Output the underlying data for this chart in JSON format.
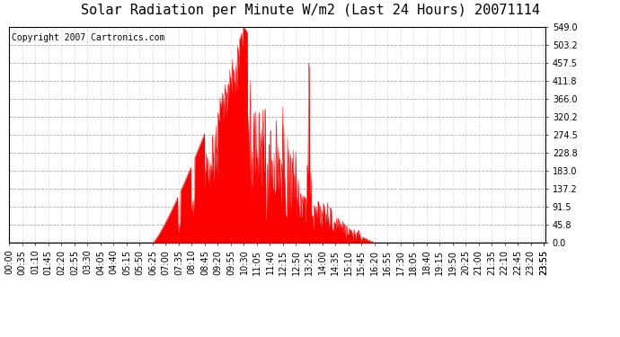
{
  "title": "Solar Radiation per Minute W/m2 (Last 24 Hours) 20071114",
  "copyright_text": "Copyright 2007 Cartronics.com",
  "y_ticks": [
    0.0,
    45.8,
    91.5,
    137.2,
    183.0,
    228.8,
    274.5,
    320.2,
    366.0,
    411.8,
    457.5,
    503.2,
    549.0
  ],
  "ymax": 549.0,
  "fill_color": "#ff0000",
  "line_color": "#ff0000",
  "bg_color": "#ffffff",
  "grid_color": "#aaaaaa",
  "dashed_line_color": "#ff0000",
  "title_fontsize": 11,
  "copyright_fontsize": 7,
  "tick_fontsize": 7
}
